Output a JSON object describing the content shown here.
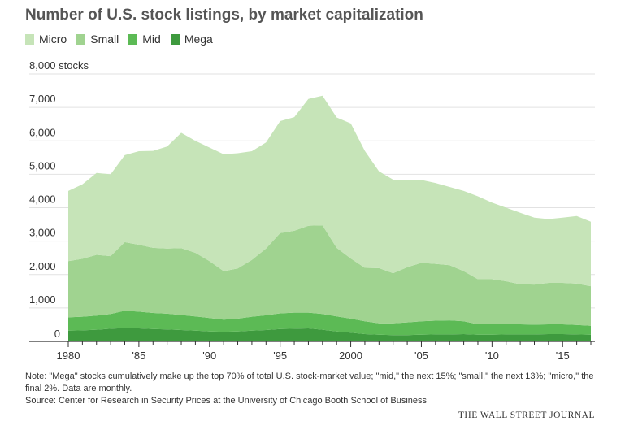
{
  "title": "Number of U.S. stock listings, by market capitalization",
  "note": "Note: \"Mega\" stocks cumulatively make up the top 70% of total U.S. stock-market value; \"mid,\" the next 15%; \"small,\" the next 13%; \"micro,\" the final 2%. Data are monthly.",
  "source": "Source: Center for Research in Security Prices at the University of Chicago Booth School of Business",
  "brand": "THE WALL STREET JOURNAL",
  "chart_data": {
    "type": "area",
    "stacked": true,
    "title": "Number of U.S. stock listings, by market capitalization",
    "ylabel": "",
    "y_unit_label": "8,000 stocks",
    "ylim": [
      0,
      8000
    ],
    "xlim": [
      1980,
      2017
    ],
    "y_ticks": [
      {
        "value": 8000,
        "label": "8,000 stocks"
      },
      {
        "value": 7000,
        "label": "7,000"
      },
      {
        "value": 6000,
        "label": "6,000"
      },
      {
        "value": 5000,
        "label": "5,000"
      },
      {
        "value": 4000,
        "label": "4,000"
      },
      {
        "value": 3000,
        "label": "3,000"
      },
      {
        "value": 2000,
        "label": "2,000"
      },
      {
        "value": 1000,
        "label": "1,000"
      },
      {
        "value": 0,
        "label": "0"
      }
    ],
    "x_ticks": [
      {
        "value": 1980,
        "label": "1980"
      },
      {
        "value": 1985,
        "label": "'85"
      },
      {
        "value": 1990,
        "label": "'90"
      },
      {
        "value": 1995,
        "label": "'95"
      },
      {
        "value": 2000,
        "label": "2000"
      },
      {
        "value": 2005,
        "label": "'05"
      },
      {
        "value": 2010,
        "label": "'10"
      },
      {
        "value": 2015,
        "label": "'15"
      }
    ],
    "legend_position": "top-left",
    "grid": true,
    "x": [
      1980,
      1981,
      1982,
      1983,
      1984,
      1985,
      1986,
      1987,
      1988,
      1989,
      1990,
      1991,
      1992,
      1993,
      1994,
      1995,
      1996,
      1997,
      1998,
      1999,
      2000,
      2001,
      2002,
      2003,
      2004,
      2005,
      2006,
      2007,
      2008,
      2009,
      2010,
      2011,
      2012,
      2013,
      2014,
      2015,
      2016,
      2017
    ],
    "series": [
      {
        "name": "Mega",
        "color": "#3e9a3e",
        "values": [
          320,
          330,
          350,
          380,
          400,
          390,
          370,
          360,
          340,
          320,
          300,
          290,
          300,
          320,
          340,
          370,
          380,
          390,
          350,
          300,
          260,
          220,
          200,
          190,
          190,
          200,
          210,
          210,
          220,
          200,
          200,
          210,
          210,
          210,
          220,
          220,
          210,
          200
        ]
      },
      {
        "name": "Mid",
        "color": "#5cba55",
        "values": [
          400,
          410,
          420,
          440,
          520,
          500,
          480,
          470,
          450,
          430,
          400,
          360,
          380,
          420,
          440,
          470,
          480,
          470,
          470,
          450,
          420,
          380,
          340,
          350,
          380,
          400,
          410,
          420,
          380,
          310,
          320,
          310,
          300,
          290,
          290,
          290,
          280,
          270
        ]
      },
      {
        "name": "Small",
        "color": "#a0d390",
        "values": [
          1680,
          1730,
          1820,
          1730,
          2050,
          2000,
          1950,
          1950,
          2000,
          1900,
          1700,
          1450,
          1500,
          1700,
          2000,
          2400,
          2450,
          2600,
          2650,
          2050,
          1800,
          1600,
          1650,
          1500,
          1650,
          1750,
          1700,
          1650,
          1500,
          1350,
          1340,
          1280,
          1200,
          1200,
          1240,
          1240,
          1240,
          1180
        ]
      },
      {
        "name": "Micro",
        "color": "#c6e4b8",
        "values": [
          2100,
          2230,
          2450,
          2450,
          2600,
          2800,
          2900,
          3050,
          3450,
          3350,
          3400,
          3500,
          3450,
          3250,
          3170,
          3350,
          3400,
          3790,
          3880,
          3900,
          4040,
          3500,
          2900,
          2800,
          2620,
          2480,
          2420,
          2340,
          2400,
          2480,
          2290,
          2200,
          2140,
          2000,
          1910,
          1950,
          2020,
          1930
        ]
      }
    ]
  }
}
